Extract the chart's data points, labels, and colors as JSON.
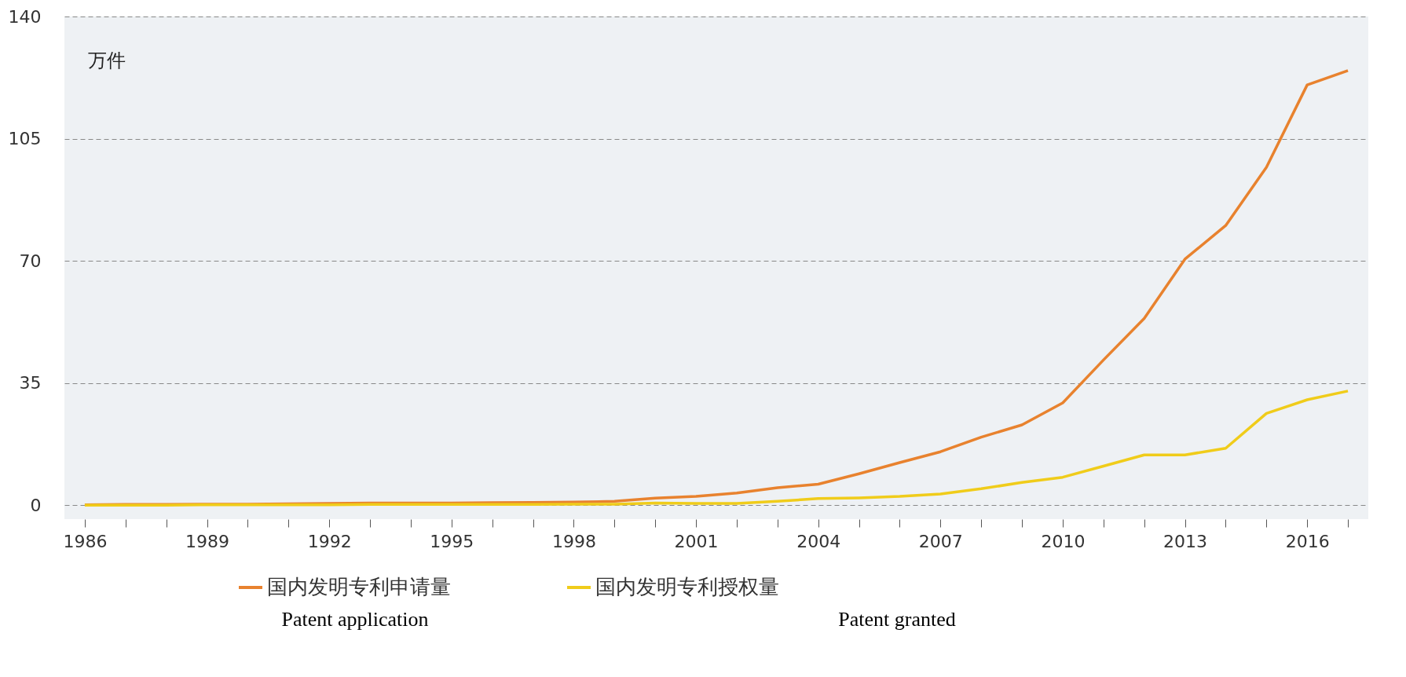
{
  "chart_data": {
    "type": "line",
    "ylabel": "万件",
    "x": [
      1986,
      1987,
      1988,
      1989,
      1990,
      1991,
      1992,
      1993,
      1994,
      1995,
      1996,
      1997,
      1998,
      1999,
      2000,
      2001,
      2002,
      2003,
      2004,
      2005,
      2006,
      2007,
      2008,
      2009,
      2010,
      2011,
      2012,
      2013,
      2014,
      2015,
      2016,
      2017
    ],
    "series": [
      {
        "name": "国内发明专利申请量",
        "color": "#e8822e",
        "values": [
          0.1,
          0.2,
          0.2,
          0.3,
          0.3,
          0.4,
          0.5,
          0.6,
          0.6,
          0.6,
          0.7,
          0.8,
          0.9,
          1.1,
          2.0,
          2.5,
          3.5,
          5.0,
          6.0,
          9.0,
          12.2,
          15.3,
          19.5,
          23.0,
          29.3,
          41.6,
          53.5,
          70.5,
          80.1,
          96.8,
          120.4,
          124.5
        ]
      },
      {
        "name": "国内发明专利授权量",
        "color": "#f0cc1a",
        "values": [
          0.0,
          0.0,
          0.0,
          0.1,
          0.1,
          0.1,
          0.1,
          0.2,
          0.2,
          0.2,
          0.2,
          0.2,
          0.3,
          0.3,
          0.6,
          0.5,
          0.5,
          1.1,
          1.9,
          2.1,
          2.5,
          3.2,
          4.7,
          6.5,
          8.0,
          11.2,
          14.4,
          14.4,
          16.3,
          26.3,
          30.2,
          32.7
        ]
      }
    ],
    "xlim": [
      1985.5,
      2017.5
    ],
    "xticks": [
      1986,
      {
        "value": 1987,
        "label": null
      },
      {
        "value": 1988,
        "label": null
      },
      1989,
      {
        "value": 1990,
        "label": null
      },
      {
        "value": 1991,
        "label": null
      },
      1992,
      {
        "value": 1993,
        "label": null
      },
      {
        "value": 1994,
        "label": null
      },
      1995,
      {
        "value": 1996,
        "label": null
      },
      {
        "value": 1997,
        "label": null
      },
      1998,
      {
        "value": 1999,
        "label": null
      },
      {
        "value": 2000,
        "label": null
      },
      2001,
      {
        "value": 2002,
        "label": null
      },
      {
        "value": 2003,
        "label": null
      },
      2004,
      {
        "value": 2005,
        "label": null
      },
      {
        "value": 2006,
        "label": null
      },
      2007,
      {
        "value": 2008,
        "label": null
      },
      {
        "value": 2009,
        "label": null
      },
      2010,
      {
        "value": 2011,
        "label": null
      },
      {
        "value": 2012,
        "label": null
      },
      2013,
      {
        "value": 2014,
        "label": null
      },
      {
        "value": 2015,
        "label": null
      },
      2016,
      {
        "value": 2017,
        "label": null
      }
    ],
    "ylim": [
      -4,
      140
    ],
    "yticks": [
      0,
      35,
      70,
      105,
      140
    ],
    "grid": "y",
    "legend": "bottom",
    "marker": "none",
    "line_style": "solid",
    "annotations": [
      "Patent application",
      "Patent granted"
    ]
  }
}
